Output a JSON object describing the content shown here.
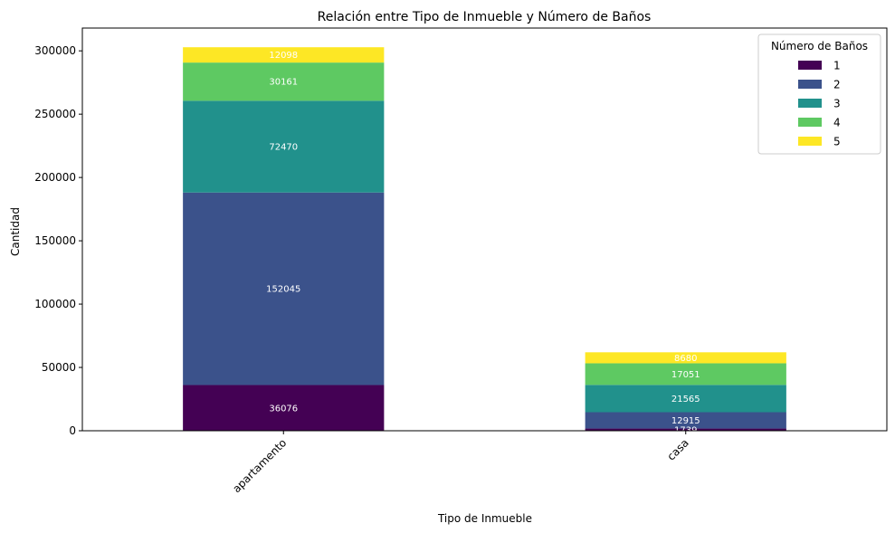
{
  "chart_data": {
    "type": "bar",
    "stacked": true,
    "title": "Relación entre Tipo de Inmueble y Número de Baños",
    "xlabel": "Tipo de Inmueble",
    "ylabel": "Cantidad",
    "categories": [
      "apartamento",
      "casa"
    ],
    "ylim": [
      0,
      318000
    ],
    "yticks": [
      0,
      50000,
      100000,
      150000,
      200000,
      250000,
      300000
    ],
    "grid": false,
    "legend": {
      "title": "Número de Baños",
      "placement": "top-right"
    },
    "series": [
      {
        "name": "1",
        "color": "#440154",
        "values": [
          36076,
          1739
        ]
      },
      {
        "name": "2",
        "color": "#3b528b",
        "values": [
          152045,
          12915
        ]
      },
      {
        "name": "3",
        "color": "#21918c",
        "values": [
          72470,
          21565
        ]
      },
      {
        "name": "4",
        "color": "#5ec962",
        "values": [
          30161,
          17051
        ]
      },
      {
        "name": "5",
        "color": "#fde725",
        "values": [
          12098,
          8680
        ]
      }
    ]
  }
}
